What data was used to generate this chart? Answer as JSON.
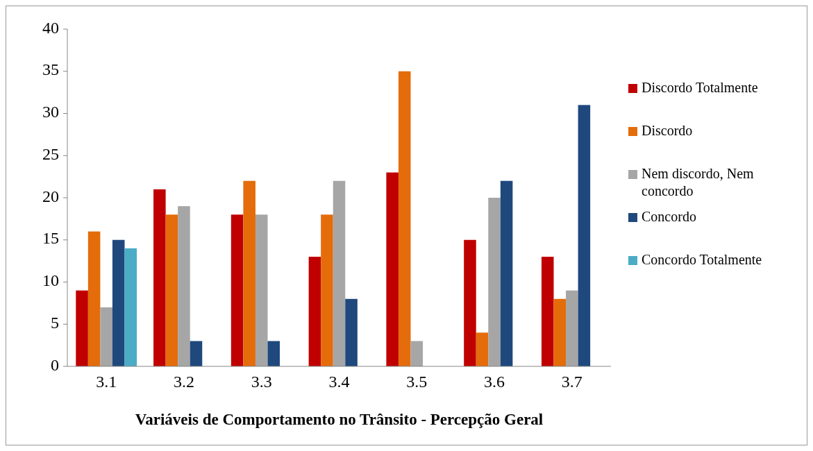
{
  "chart_data": {
    "type": "bar",
    "xlabel": "Variáveis de Comportamento no Trânsito - Percepção Geral",
    "categories": [
      "3.1",
      "3.2",
      "3.3",
      "3.4",
      "3.5",
      "3.6",
      "3.7"
    ],
    "series": [
      {
        "name": "Discordo Totalmente",
        "color": "#c00000",
        "values": [
          9,
          21,
          18,
          13,
          23,
          15,
          13
        ]
      },
      {
        "name": "Discordo",
        "color": "#e46c0a",
        "values": [
          16,
          18,
          22,
          18,
          35,
          4,
          8
        ]
      },
      {
        "name": "Nem discordo, Nem concordo",
        "color": "#a6a6a6",
        "values": [
          7,
          19,
          18,
          22,
          3,
          20,
          9
        ]
      },
      {
        "name": "Concordo",
        "color": "#1f497d",
        "values": [
          15,
          3,
          3,
          8,
          null,
          22,
          31
        ]
      },
      {
        "name": "Concordo Totalmente",
        "color": "#4bacc6",
        "values": [
          14,
          null,
          null,
          null,
          null,
          null,
          null
        ]
      }
    ],
    "ylim": [
      0,
      40
    ],
    "yticks": [
      0,
      5,
      10,
      15,
      20,
      25,
      30,
      35,
      40
    ],
    "grid": false,
    "legend": "right"
  }
}
